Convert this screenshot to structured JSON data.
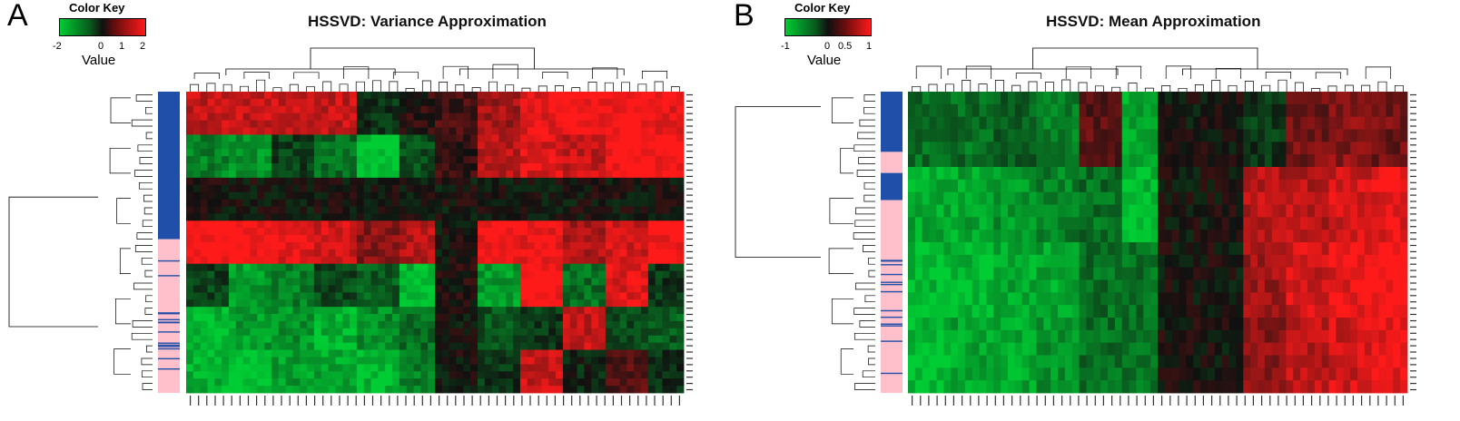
{
  "chart_data": [
    {
      "type": "heatmap",
      "panel_label": "A",
      "title": "HSSVD: Variance Approximation",
      "color_key": {
        "title": "Color Key",
        "label": "Value",
        "ticks": [
          "-2",
          "0",
          "1",
          "2"
        ],
        "range": [
          -2,
          2
        ],
        "low_color": "#00cc33",
        "mid_color": "#101010",
        "high_color": "#ff1a1a"
      },
      "row_dendrogram": true,
      "column_dendrogram": true,
      "row_side_colors": [
        "#1f4fa8",
        "#ffc0cb"
      ],
      "row_groups": [
        {
          "color": "#1f4fa8",
          "fraction": 0.49
        },
        {
          "color": "#ffc0cb",
          "fraction": 0.51
        }
      ],
      "row_blocks": [
        {
          "values": [
            1.5,
            1.5,
            1.5,
            1.5,
            -0.3,
            0.2,
            0.4,
            1.2,
            1.8,
            2.0,
            2.0,
            1.9
          ]
        },
        {
          "values": [
            -1.2,
            -1.4,
            -0.5,
            -1.0,
            -2.0,
            -0.6,
            0.3,
            1.4,
            1.7,
            1.5,
            2.0,
            2.0
          ]
        },
        {
          "values": [
            0.0,
            0.0,
            0.0,
            0.0,
            0.0,
            0.0,
            0.0,
            0.0,
            0.0,
            0.0,
            0.0,
            0.0
          ]
        },
        {
          "values": [
            2.0,
            2.0,
            1.8,
            1.6,
            1.0,
            1.4,
            0.0,
            2.0,
            1.9,
            1.3,
            1.6,
            2.0
          ]
        },
        {
          "values": [
            -0.5,
            -1.5,
            -1.2,
            -0.6,
            -0.8,
            -1.8,
            0.1,
            -1.5,
            2.0,
            -1.0,
            1.7,
            -0.4
          ]
        },
        {
          "values": [
            -1.8,
            -1.5,
            -1.4,
            -1.7,
            -1.3,
            -1.0,
            0.0,
            -0.7,
            -0.4,
            1.5,
            -0.6,
            -0.8
          ]
        },
        {
          "values": [
            -1.7,
            -1.9,
            -1.5,
            -1.6,
            -1.8,
            -1.2,
            0.0,
            -0.4,
            1.5,
            -0.2,
            0.6,
            -0.3
          ]
        }
      ]
    },
    {
      "type": "heatmap",
      "panel_label": "B",
      "title": "HSSVD: Mean Approximation",
      "color_key": {
        "title": "Color Key",
        "label": "Value",
        "ticks": [
          "-1",
          "0",
          "0.5",
          "1"
        ],
        "range": [
          -1,
          1
        ],
        "low_color": "#00cc33",
        "mid_color": "#101010",
        "high_color": "#ff1a1a"
      },
      "row_dendrogram": true,
      "column_dendrogram": true,
      "row_side_colors": [
        "#1f4fa8",
        "#ffc0cb"
      ],
      "row_groups": [
        {
          "color": "#1f4fa8",
          "fraction": 0.2
        },
        {
          "color": "#ffc0cb",
          "fraction": 0.07
        },
        {
          "color": "#1f4fa8",
          "fraction": 0.09
        },
        {
          "color": "#ffc0cb",
          "fraction": 0.64
        }
      ],
      "row_blocks": [
        {
          "values": [
            -0.5,
            -0.5,
            -0.4,
            -0.6,
            0.3,
            -0.8,
            0.0,
            0.0,
            -0.2,
            0.4,
            0.5,
            0.4
          ]
        },
        {
          "values": [
            -0.8,
            -0.8,
            -0.7,
            -0.6,
            -0.5,
            -0.9,
            0.0,
            0.0,
            0.7,
            0.7,
            0.8,
            0.9
          ]
        },
        {
          "values": [
            -0.9,
            -0.9,
            -0.8,
            -0.8,
            -0.5,
            -0.5,
            0.0,
            0.0,
            0.6,
            0.8,
            0.9,
            1.0
          ]
        },
        {
          "values": [
            -0.9,
            -0.8,
            -0.8,
            -0.7,
            -0.5,
            -0.5,
            0.0,
            0.0,
            0.5,
            0.7,
            0.8,
            0.9
          ]
        }
      ]
    }
  ]
}
